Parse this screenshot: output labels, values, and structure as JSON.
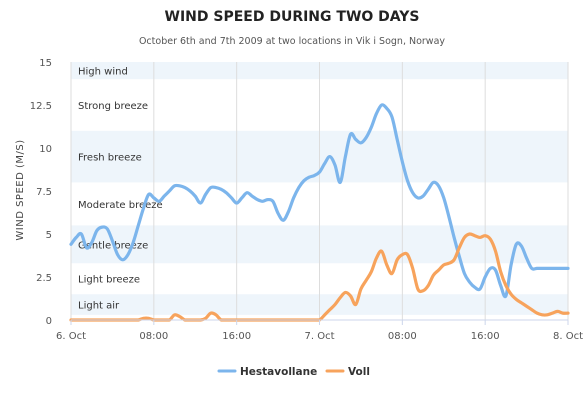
{
  "chart_data": {
    "type": "line",
    "title": "WIND SPEED DURING TWO DAYS",
    "subtitle": "October 6th and 7th 2009 at two locations in Vik i Sogn, Norway",
    "ylabel": "WIND SPEED (M/S)",
    "xlabel": "",
    "ylim": [
      0,
      15
    ],
    "x_unit": "hours since first tick",
    "yticks": [
      "0",
      "2.5",
      "5",
      "7.5",
      "10",
      "12.5",
      "15"
    ],
    "ytick_values": [
      0,
      2.5,
      5,
      7.5,
      10,
      12.5,
      15
    ],
    "xticks": [
      "6. Oct",
      "08:00",
      "16:00",
      "7. Oct",
      "08:00",
      "16:00",
      "8. Oct"
    ],
    "xtick_hours": [
      0,
      8,
      16,
      24,
      32,
      40,
      48
    ],
    "xlim": [
      0,
      48
    ],
    "grid": "vertical",
    "legend_position": "bottom-center",
    "bands": [
      {
        "label": "Light air",
        "from": 0.3,
        "to": 1.5
      },
      {
        "label": "Light breeze",
        "from": 1.5,
        "to": 3.3
      },
      {
        "label": "Gentle breeze",
        "from": 3.3,
        "to": 5.5
      },
      {
        "label": "Moderate breeze",
        "from": 5.5,
        "to": 8.0
      },
      {
        "label": "Fresh breeze",
        "from": 8.0,
        "to": 11.0
      },
      {
        "label": "Strong breeze",
        "from": 11.0,
        "to": 14.0
      },
      {
        "label": "High wind",
        "from": 14.0,
        "to": 15.0
      }
    ],
    "series": [
      {
        "name": "Hestavollane",
        "color": "#7cb5ec",
        "x": [
          0,
          0.5,
          1,
          1.5,
          2,
          2.5,
          3,
          3.5,
          4,
          4.5,
          5,
          5.5,
          6,
          6.5,
          7,
          7.5,
          8,
          8.5,
          9,
          9.5,
          10,
          10.5,
          11,
          11.5,
          12,
          12.5,
          13,
          13.5,
          14,
          14.5,
          15,
          15.5,
          16,
          16.5,
          17,
          17.5,
          18,
          18.5,
          19,
          19.5,
          20,
          20.5,
          21,
          21.5,
          22,
          22.5,
          23,
          23.5,
          24,
          24.5,
          25,
          25.5,
          26,
          26.5,
          27,
          27.5,
          28,
          28.5,
          29,
          29.5,
          30,
          30.5,
          31,
          31.5,
          32,
          32.5,
          33,
          33.5,
          34,
          34.5,
          35,
          35.5,
          36,
          36.5,
          37,
          37.5,
          38,
          38.5,
          39,
          39.5,
          40,
          40.5,
          41,
          41.5,
          42,
          42.5,
          43,
          43.5,
          44,
          44.5,
          45,
          45.5,
          46,
          46.5,
          47,
          47.5,
          48
        ],
        "values": [
          4.4,
          4.8,
          5.0,
          4.2,
          4.5,
          5.2,
          5.4,
          5.3,
          4.6,
          3.8,
          3.5,
          3.8,
          4.5,
          5.5,
          6.5,
          7.3,
          7.1,
          6.9,
          7.2,
          7.5,
          7.8,
          7.8,
          7.7,
          7.5,
          7.2,
          6.8,
          7.3,
          7.7,
          7.7,
          7.6,
          7.4,
          7.1,
          6.8,
          7.1,
          7.4,
          7.2,
          7.0,
          6.9,
          7.0,
          6.9,
          6.2,
          5.8,
          6.3,
          7.1,
          7.7,
          8.1,
          8.3,
          8.4,
          8.6,
          9.1,
          9.5,
          9.0,
          8.0,
          9.5,
          10.8,
          10.5,
          10.3,
          10.6,
          11.2,
          12.0,
          12.5,
          12.3,
          11.8,
          10.5,
          9.2,
          8.1,
          7.4,
          7.1,
          7.2,
          7.6,
          8.0,
          7.8,
          7.1,
          6.0,
          4.8,
          3.7,
          2.7,
          2.2,
          1.9,
          1.8,
          2.5,
          3.0,
          2.9,
          2.0,
          1.4,
          3.2,
          4.4,
          4.3,
          3.6,
          3.0,
          3.0,
          3.0,
          3.0,
          3.0,
          3.0,
          3.0,
          3.0
        ]
      },
      {
        "name": "Voll",
        "color": "#f7a35c",
        "x": [
          0,
          0.5,
          1,
          1.5,
          2,
          2.5,
          3,
          3.5,
          4,
          4.5,
          5,
          5.5,
          6,
          6.5,
          7,
          7.5,
          8,
          8.5,
          9,
          9.5,
          10,
          10.5,
          11,
          11.5,
          12,
          12.5,
          13,
          13.5,
          14,
          14.5,
          15,
          15.5,
          16,
          16.5,
          17,
          17.5,
          18,
          18.5,
          19,
          19.5,
          20,
          20.5,
          21,
          21.5,
          22,
          22.5,
          23,
          23.5,
          24,
          24.5,
          25,
          25.5,
          26,
          26.5,
          27,
          27.5,
          28,
          28.5,
          29,
          29.5,
          30,
          30.5,
          31,
          31.5,
          32,
          32.5,
          33,
          33.5,
          34,
          34.5,
          35,
          35.5,
          36,
          36.5,
          37,
          37.5,
          38,
          38.5,
          39,
          39.5,
          40,
          40.5,
          41,
          41.5,
          42,
          42.5,
          43,
          43.5,
          44,
          44.5,
          45,
          45.5,
          46,
          46.5,
          47,
          47.5,
          48
        ],
        "values": [
          0,
          0,
          0,
          0,
          0,
          0,
          0,
          0,
          0,
          0,
          0,
          0,
          0,
          0,
          0.1,
          0.1,
          0,
          0,
          0,
          0,
          0.3,
          0.2,
          0,
          0,
          0,
          0,
          0.1,
          0.4,
          0.3,
          0,
          0,
          0,
          0,
          0,
          0,
          0,
          0,
          0,
          0,
          0,
          0,
          0,
          0,
          0,
          0,
          0,
          0,
          0,
          0,
          0.3,
          0.6,
          0.9,
          1.3,
          1.6,
          1.4,
          0.9,
          1.8,
          2.3,
          2.8,
          3.6,
          4.0,
          3.2,
          2.7,
          3.5,
          3.8,
          3.8,
          3.0,
          1.8,
          1.7,
          2.0,
          2.6,
          2.9,
          3.2,
          3.3,
          3.5,
          4.2,
          4.8,
          5.0,
          4.9,
          4.8,
          4.9,
          4.7,
          4.0,
          2.8,
          2.0,
          1.5,
          1.2,
          1.0,
          0.8,
          0.6,
          0.4,
          0.3,
          0.3,
          0.4,
          0.5,
          0.4,
          0.4
        ]
      }
    ]
  }
}
